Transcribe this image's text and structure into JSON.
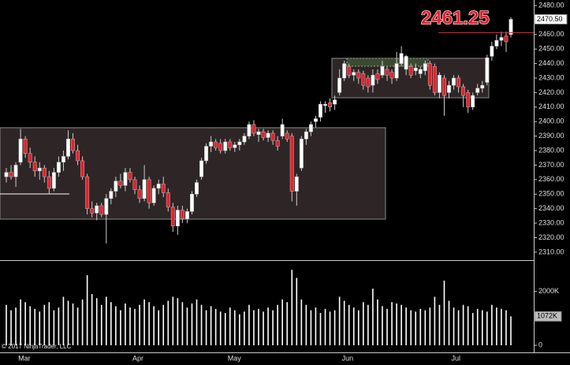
{
  "chart_data": [
    {
      "type": "candlestick",
      "categories": [
        null,
        null,
        null,
        "Mar",
        null,
        null,
        null,
        null,
        null,
        null,
        null,
        null,
        null,
        null,
        null,
        null,
        null,
        null,
        null,
        null,
        null,
        null,
        null,
        null,
        null,
        null,
        null,
        "Apr",
        null,
        null,
        null,
        null,
        null,
        null,
        null,
        null,
        null,
        null,
        null,
        null,
        null,
        null,
        null,
        null,
        null,
        null,
        null,
        "May",
        null,
        null,
        null,
        null,
        null,
        null,
        null,
        null,
        null,
        null,
        null,
        null,
        null,
        null,
        null,
        null,
        null,
        null,
        null,
        null,
        null,
        null,
        null,
        "Jun",
        null,
        null,
        null,
        null,
        null,
        null,
        null,
        null,
        null,
        null,
        null,
        null,
        null,
        null,
        null,
        null,
        null,
        null,
        null,
        null,
        null,
        null,
        "Jul",
        null,
        null,
        null,
        null,
        null,
        null,
        null,
        null,
        null,
        null,
        null,
        null
      ],
      "open": [
        2362,
        2365,
        2362,
        2372,
        2388,
        2378,
        2372,
        2366,
        2368,
        2362,
        2354,
        2365,
        2372,
        2376,
        2388,
        2380,
        2373,
        2362,
        2340,
        2337,
        2342,
        2336,
        2347,
        2352,
        2359,
        2356,
        2365,
        2360,
        2353,
        2347,
        2360,
        2344,
        2354,
        2357,
        2351,
        2341,
        2328,
        2339,
        2333,
        2338,
        2350,
        2362,
        2373,
        2383,
        2386,
        2385,
        2380,
        2386,
        2382,
        2384,
        2386,
        2390,
        2398,
        2391,
        2393,
        2389,
        2392,
        2387,
        2390,
        2392,
        2390,
        2352,
        2368,
        2388,
        2393,
        2400,
        2403,
        2411,
        2413,
        2412,
        2420,
        2430,
        2438,
        2432,
        2434,
        2433,
        2430,
        2425,
        2433,
        2432,
        2436,
        2434,
        2430,
        2440,
        2436,
        2438,
        2435,
        2433,
        2435,
        2440,
        2438,
        2420,
        2430,
        2420,
        2425,
        2430,
        2424,
        2420,
        2410,
        2420,
        2423,
        2427,
        2445,
        2452,
        2456,
        2459,
        2460
      ],
      "high": [
        2368,
        2370,
        2372,
        2395,
        2390,
        2382,
        2376,
        2372,
        2370,
        2366,
        2368,
        2376,
        2380,
        2394,
        2392,
        2384,
        2376,
        2364,
        2345,
        2344,
        2344,
        2350,
        2354,
        2362,
        2364,
        2368,
        2368,
        2362,
        2356,
        2370,
        2362,
        2356,
        2360,
        2362,
        2354,
        2344,
        2342,
        2342,
        2340,
        2352,
        2360,
        2375,
        2385,
        2390,
        2388,
        2388,
        2388,
        2388,
        2386,
        2388,
        2392,
        2400,
        2401,
        2395,
        2395,
        2394,
        2394,
        2390,
        2402,
        2394,
        2392,
        2364,
        2390,
        2395,
        2400,
        2404,
        2414,
        2414,
        2416,
        2418,
        2436,
        2442,
        2440,
        2436,
        2436,
        2435,
        2432,
        2436,
        2436,
        2442,
        2438,
        2436,
        2448,
        2452,
        2446,
        2440,
        2440,
        2438,
        2442,
        2442,
        2440,
        2434,
        2432,
        2428,
        2432,
        2432,
        2426,
        2422,
        2420,
        2426,
        2428,
        2446,
        2455,
        2460,
        2462,
        2462,
        2472
      ],
      "low": [
        2358,
        2360,
        2355,
        2370,
        2375,
        2368,
        2362,
        2360,
        2358,
        2350,
        2352,
        2362,
        2366,
        2374,
        2378,
        2370,
        2360,
        2336,
        2334,
        2332,
        2334,
        2316,
        2343,
        2348,
        2354,
        2352,
        2358,
        2350,
        2344,
        2345,
        2340,
        2342,
        2350,
        2348,
        2338,
        2324,
        2322,
        2330,
        2330,
        2336,
        2348,
        2360,
        2371,
        2379,
        2380,
        2378,
        2378,
        2380,
        2379,
        2380,
        2384,
        2388,
        2390,
        2386,
        2387,
        2386,
        2384,
        2380,
        2388,
        2386,
        2345,
        2342,
        2366,
        2384,
        2390,
        2396,
        2400,
        2406,
        2407,
        2408,
        2418,
        2428,
        2430,
        2428,
        2426,
        2422,
        2420,
        2420,
        2426,
        2430,
        2428,
        2426,
        2428,
        2438,
        2432,
        2430,
        2432,
        2430,
        2432,
        2422,
        2418,
        2416,
        2404,
        2416,
        2422,
        2420,
        2410,
        2406,
        2408,
        2418,
        2420,
        2425,
        2442,
        2450,
        2452,
        2448,
        2458
      ],
      "close": [
        2365,
        2362,
        2370,
        2388,
        2378,
        2372,
        2366,
        2368,
        2362,
        2354,
        2365,
        2372,
        2376,
        2388,
        2380,
        2373,
        2362,
        2340,
        2337,
        2342,
        2336,
        2347,
        2352,
        2359,
        2356,
        2365,
        2360,
        2353,
        2347,
        2360,
        2344,
        2354,
        2357,
        2351,
        2341,
        2328,
        2339,
        2333,
        2338,
        2350,
        2358,
        2373,
        2383,
        2386,
        2382,
        2380,
        2386,
        2382,
        2384,
        2386,
        2390,
        2398,
        2392,
        2393,
        2389,
        2392,
        2387,
        2383,
        2398,
        2388,
        2352,
        2362,
        2388,
        2393,
        2398,
        2402,
        2412,
        2412,
        2410,
        2415,
        2430,
        2440,
        2432,
        2434,
        2430,
        2425,
        2424,
        2432,
        2429,
        2438,
        2432,
        2430,
        2440,
        2447,
        2445,
        2432,
        2437,
        2436,
        2440,
        2425,
        2420,
        2432,
        2418,
        2425,
        2430,
        2424,
        2418,
        2410,
        2418,
        2423,
        2425,
        2444,
        2452,
        2456,
        2458,
        2455,
        2470.5
      ],
      "up_color": "#ffffff",
      "down_color": "#e8202a",
      "ylim": [
        2304.5,
        2483.8
      ],
      "yticks": [
        {
          "value": 2310,
          "label": "2310.00"
        },
        {
          "value": 2320,
          "label": "2320.00"
        },
        {
          "value": 2330,
          "label": "2330.00"
        },
        {
          "value": 2340,
          "label": "2340.00"
        },
        {
          "value": 2350,
          "label": "2350.00"
        },
        {
          "value": 2360,
          "label": "2360.00"
        },
        {
          "value": 2370,
          "label": "2370.00"
        },
        {
          "value": 2380,
          "label": "2380.00"
        },
        {
          "value": 2390,
          "label": "2390.00"
        },
        {
          "value": 2400,
          "label": "2400.00"
        },
        {
          "value": 2410,
          "label": "2410.00"
        },
        {
          "value": 2420,
          "label": "2420.00"
        },
        {
          "value": 2430,
          "label": "2430.00"
        },
        {
          "value": 2440,
          "label": "2440.00"
        },
        {
          "value": 2450,
          "label": "2450.00"
        },
        {
          "value": 2460,
          "label": "2460.00"
        },
        {
          "value": 2470,
          "label": "2470.00"
        },
        {
          "value": 2480,
          "label": "2480.00"
        }
      ],
      "last_price": {
        "value": 2470.5,
        "label": "2470.50"
      },
      "annotation": 2461.25,
      "annotation_color": "#e8202a"
    },
    {
      "type": "bar",
      "values": [
        1500,
        1300,
        1400,
        1700,
        1600,
        1450,
        1350,
        1250,
        1500,
        1600,
        1300,
        1400,
        1800,
        1650,
        1550,
        1400,
        1700,
        2600,
        1900,
        1750,
        1500,
        1800,
        1600,
        1450,
        1300,
        1550,
        1400,
        1350,
        1500,
        1700,
        1600,
        1450,
        1300,
        1500,
        1650,
        1800,
        1750,
        1600,
        1400,
        1550,
        1700,
        1500,
        1300,
        1450,
        1350,
        1250,
        1200,
        1400,
        1300,
        1150,
        1250,
        1500,
        1300,
        1350,
        1250,
        1400,
        1300,
        1500,
        1700,
        1600,
        2800,
        2500,
        1700,
        1500,
        1300,
        1400,
        1200,
        1350,
        1250,
        1300,
        1800,
        1650,
        1500,
        1400,
        1300,
        1600,
        1500,
        2100,
        1700,
        1450,
        1350,
        1600,
        1550,
        1500,
        1400,
        1300,
        1250,
        1350,
        1300,
        1400,
        1800,
        1500,
        2400,
        1650,
        1400,
        1300,
        1500,
        1450,
        1200,
        1350,
        1300,
        1250,
        1500,
        1400,
        1350,
        1300,
        1072
      ],
      "color": "#ffffff",
      "ylim": [
        0,
        3100
      ],
      "yticks": [
        0,
        {
          "value": 2000,
          "label": "2000K"
        }
      ],
      "last_value": {
        "value": 1072,
        "label": "1072K"
      }
    }
  ],
  "watermark": "© 2017 NinjaTrader, LLC"
}
